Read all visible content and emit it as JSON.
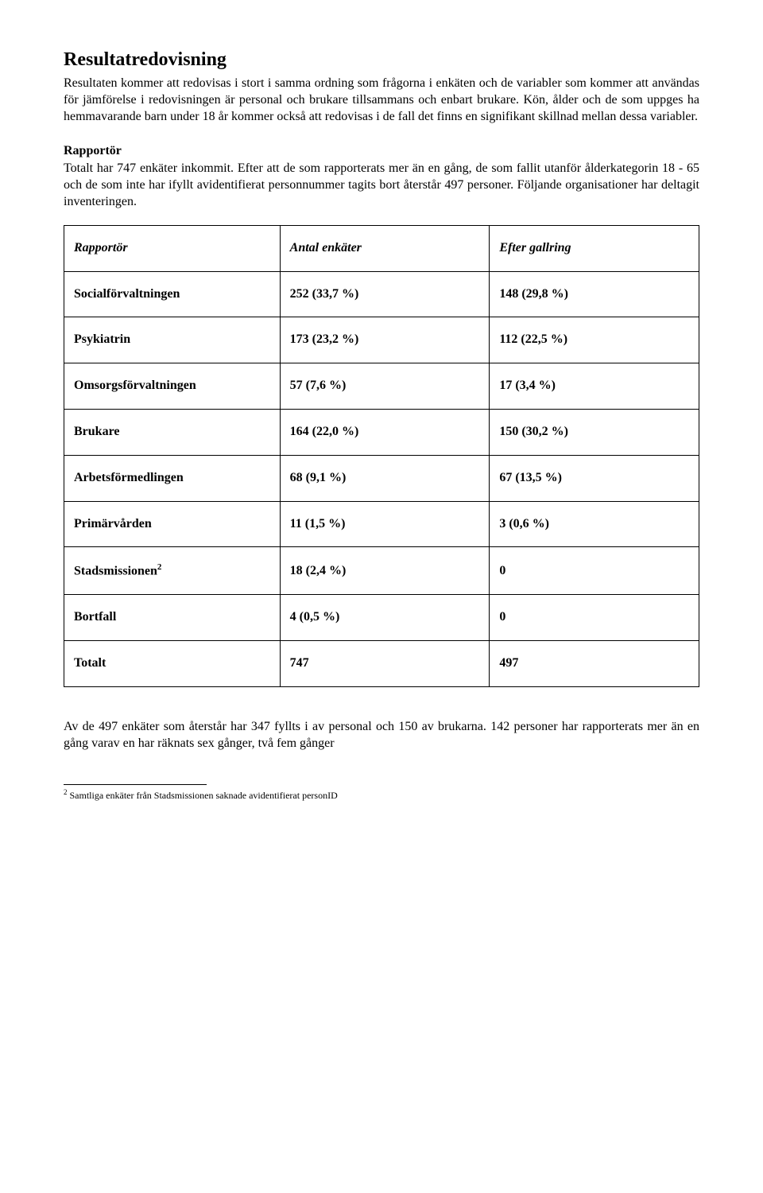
{
  "title": "Resultatredovisning",
  "para1": "Resultaten kommer att redovisas i stort i samma ordning som frågorna i enkäten och de variabler som kommer att användas för jämförelse i redovisningen är personal och brukare tillsammans och enbart brukare. Kön, ålder och de som uppges ha hemmavarande barn under 18 år kommer också att redovisas i de fall det finns en signifikant skillnad mellan dessa variabler.",
  "heading2": "Rapportör",
  "para2": "Totalt har 747 enkäter inkommit. Efter att de som rapporterats mer än en gång, de som fallit utanför ålderkategorin 18 - 65 och de som inte har ifyllt avidentifierat personnummer tagits bort återstår 497 personer. Följande organisationer har deltagit inventeringen.",
  "table": {
    "headers": [
      "Rapportör",
      "Antal enkäter",
      "Efter gallring"
    ],
    "rows": [
      {
        "label": "Socialförvaltningen",
        "c2": "252  (33,7 %)",
        "c3": "148  (29,8 %)"
      },
      {
        "label": "Psykiatrin",
        "c2": "173  (23,2 %)",
        "c3": "112  (22,5 %)"
      },
      {
        "label": "Omsorgsförvaltningen",
        "c2": "  57  (7,6 %)",
        "c3": "  17  (3,4 %)"
      },
      {
        "label": "Brukare",
        "c2": "164  (22,0 %)",
        "c3": "150  (30,2 %)"
      },
      {
        "label": "Arbetsförmedlingen",
        "c2": "  68  (9,1 %)",
        "c3": "  67 (13,5 %)"
      },
      {
        "label": "Primärvården",
        "c2": "  11  (1,5 %)",
        "c3": "    3  (0,6 %)"
      },
      {
        "label": "Stadsmissionen",
        "sup": "2",
        "c2": "  18  (2,4 %)",
        "c3": "    0"
      },
      {
        "label": "Bortfall",
        "c2": "    4  (0,5 %)",
        "c3": "    0"
      },
      {
        "label": "Totalt",
        "c2": "747",
        "c3": "497"
      }
    ]
  },
  "para3": "Av de 497 enkäter som återstår har 347 fyllts i av personal och 150 av brukarna. 142 personer har rapporterats mer än en gång varav en har räknats sex gånger, två fem gånger",
  "footnote": {
    "num": "2",
    "text": " Samtliga enkäter från Stadsmissionen saknade avidentifierat personID"
  }
}
